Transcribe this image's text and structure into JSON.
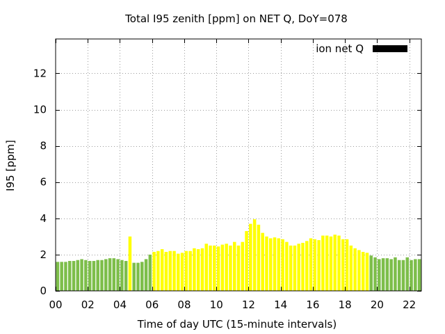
{
  "chart_data": {
    "type": "bar",
    "title": "Total I95 zenith [ppm] on NET Q, DoY=078",
    "xlabel": "Time of day UTC (15-minute intervals)",
    "ylabel": "I95 [ppm]",
    "xlim": [
      0,
      22.75
    ],
    "ylim": [
      0,
      13.9
    ],
    "xticks": [
      "00",
      "02",
      "04",
      "06",
      "08",
      "10",
      "12",
      "14",
      "16",
      "18",
      "20",
      "22"
    ],
    "xtick_values": [
      0,
      2,
      4,
      6,
      8,
      10,
      12,
      14,
      16,
      18,
      20,
      22
    ],
    "yticks": [
      "0",
      "2",
      "4",
      "6",
      "8",
      "10",
      "12"
    ],
    "ytick_values": [
      0,
      2,
      4,
      6,
      8,
      10,
      12
    ],
    "grid": true,
    "legend_position": "top-right",
    "series": [
      {
        "name": "ion net Q",
        "color": "#000000"
      }
    ],
    "bar_colors": {
      "green": "#7dbe4a",
      "yellow": "#ffff00"
    },
    "x": [
      0.0,
      0.25,
      0.5,
      0.75,
      1.0,
      1.25,
      1.5,
      1.75,
      2.0,
      2.25,
      2.5,
      2.75,
      3.0,
      3.25,
      3.5,
      3.75,
      4.0,
      4.25,
      4.5,
      4.75,
      5.0,
      5.25,
      5.5,
      5.75,
      6.0,
      6.25,
      6.5,
      6.75,
      7.0,
      7.25,
      7.5,
      7.75,
      8.0,
      8.25,
      8.5,
      8.75,
      9.0,
      9.25,
      9.5,
      9.75,
      10.0,
      10.25,
      10.5,
      10.75,
      11.0,
      11.25,
      11.5,
      11.75,
      12.0,
      12.25,
      12.5,
      12.75,
      13.0,
      13.25,
      13.5,
      13.75,
      14.0,
      14.25,
      14.5,
      14.75,
      15.0,
      15.25,
      15.5,
      15.75,
      16.0,
      16.25,
      16.5,
      16.75,
      17.0,
      17.25,
      17.5,
      17.75,
      18.0,
      18.25,
      18.5,
      18.75,
      19.0,
      19.25,
      19.5,
      19.75,
      20.0,
      20.25,
      20.5,
      20.75,
      21.0,
      21.25,
      21.5,
      21.75,
      22.0,
      22.25,
      22.5
    ],
    "values": [
      1.6,
      1.6,
      1.6,
      1.65,
      1.65,
      1.7,
      1.75,
      1.7,
      1.65,
      1.65,
      1.7,
      1.7,
      1.75,
      1.8,
      1.8,
      1.75,
      1.7,
      1.65,
      3.0,
      1.55,
      1.55,
      1.6,
      1.75,
      2.0,
      2.15,
      2.2,
      2.3,
      2.15,
      2.2,
      2.2,
      2.05,
      2.1,
      2.2,
      2.2,
      2.35,
      2.3,
      2.35,
      2.6,
      2.5,
      2.5,
      2.45,
      2.55,
      2.6,
      2.5,
      2.7,
      2.5,
      2.7,
      3.3,
      3.7,
      3.95,
      3.65,
      3.2,
      3.0,
      2.9,
      2.95,
      2.9,
      2.85,
      2.7,
      2.5,
      2.5,
      2.6,
      2.65,
      2.75,
      2.9,
      2.85,
      2.8,
      3.05,
      3.05,
      3.0,
      3.1,
      3.05,
      2.85,
      2.85,
      2.5,
      2.35,
      2.25,
      2.15,
      2.1,
      1.95,
      1.85,
      1.75,
      1.8,
      1.8,
      1.75,
      1.85,
      1.7,
      1.7,
      1.85,
      1.7,
      1.75,
      1.75
    ],
    "colors": [
      "green",
      "green",
      "green",
      "green",
      "green",
      "green",
      "green",
      "green",
      "green",
      "green",
      "green",
      "green",
      "green",
      "green",
      "green",
      "green",
      "green",
      "green",
      "yellow",
      "green",
      "green",
      "green",
      "green",
      "green",
      "yellow",
      "yellow",
      "yellow",
      "yellow",
      "yellow",
      "yellow",
      "yellow",
      "yellow",
      "yellow",
      "yellow",
      "yellow",
      "yellow",
      "yellow",
      "yellow",
      "yellow",
      "yellow",
      "yellow",
      "yellow",
      "yellow",
      "yellow",
      "yellow",
      "yellow",
      "yellow",
      "yellow",
      "yellow",
      "yellow",
      "yellow",
      "yellow",
      "yellow",
      "yellow",
      "yellow",
      "yellow",
      "yellow",
      "yellow",
      "yellow",
      "yellow",
      "yellow",
      "yellow",
      "yellow",
      "yellow",
      "yellow",
      "yellow",
      "yellow",
      "yellow",
      "yellow",
      "yellow",
      "yellow",
      "yellow",
      "yellow",
      "yellow",
      "yellow",
      "yellow",
      "yellow",
      "yellow",
      "green",
      "green",
      "green",
      "green",
      "green",
      "green",
      "green",
      "green",
      "green",
      "green",
      "green",
      "green",
      "green"
    ]
  }
}
